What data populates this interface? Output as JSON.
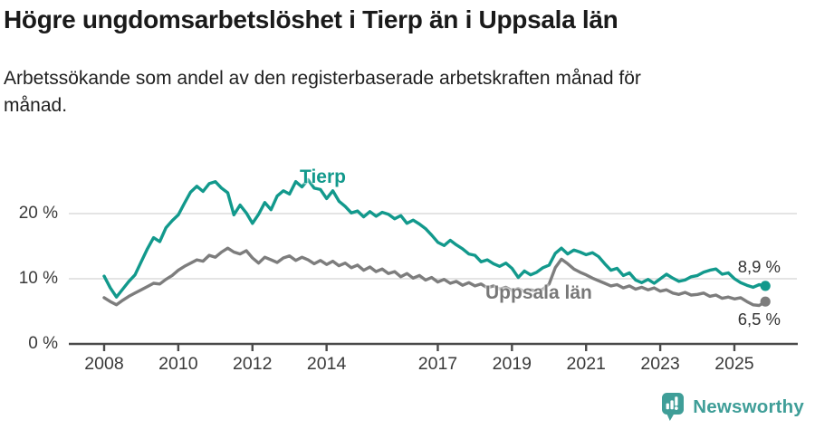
{
  "header": {
    "title": "Högre ungdomsarbetslöshet i Tierp än i Uppsala län",
    "subtitle": "Arbetssökande som andel av den registerbaserade arbetskraften månad för\nmånad."
  },
  "chart_data": {
    "type": "line",
    "title": "Högre ungdomsarbetslöshet i Tierp än i Uppsala län",
    "subtitle": "Arbetssökande som andel av den registerbaserade arbetskraften månad för månad.",
    "unit": "%",
    "grid": "horizontal",
    "legend_position": "inline-labels",
    "x_start_year": 2008.0,
    "x_step_years": 0.1667,
    "x_end_year": 2025.8,
    "ylim": [
      0,
      27
    ],
    "y_axis_ticks": [
      {
        "value": 20,
        "label": "20 %"
      },
      {
        "value": 10,
        "label": "10 %"
      },
      {
        "value": 0,
        "label": "0 %"
      }
    ],
    "x_axis_ticks": [
      {
        "year": 2008,
        "label": "2008"
      },
      {
        "year": 2010,
        "label": "2010"
      },
      {
        "year": 2012,
        "label": "2012"
      },
      {
        "year": 2014,
        "label": "2014"
      },
      {
        "year": 2017,
        "label": "2017"
      },
      {
        "year": 2019,
        "label": "2019"
      },
      {
        "year": 2021,
        "label": "2021"
      },
      {
        "year": 2023,
        "label": "2023"
      },
      {
        "year": 2025,
        "label": "2025"
      }
    ],
    "series": [
      {
        "name": "Tierp",
        "label": "Tierp",
        "color": "#12998c",
        "end_label": "8,9 %",
        "end_value": 8.9,
        "values": [
          10.4,
          8.6,
          7.2,
          8.4,
          9.6,
          10.6,
          12.6,
          14.6,
          16.3,
          15.7,
          17.8,
          18.9,
          19.8,
          21.6,
          23.3,
          24.2,
          23.4,
          24.6,
          24.9,
          23.9,
          23.2,
          19.8,
          21.3,
          20.1,
          18.5,
          19.9,
          21.7,
          20.6,
          22.7,
          23.5,
          23.0,
          24.9,
          24.1,
          25.2,
          23.9,
          23.7,
          22.3,
          23.5,
          21.9,
          21.1,
          20.1,
          20.4,
          19.5,
          20.3,
          19.6,
          20.2,
          19.9,
          19.2,
          19.7,
          18.5,
          19.0,
          18.4,
          17.7,
          16.7,
          15.6,
          15.1,
          15.9,
          15.2,
          14.6,
          13.8,
          13.6,
          12.6,
          12.9,
          12.3,
          11.9,
          12.4,
          11.6,
          10.2,
          11.2,
          10.6,
          11.0,
          11.7,
          12.1,
          13.9,
          14.7,
          13.8,
          14.4,
          14.1,
          13.7,
          14.0,
          13.4,
          12.3,
          11.3,
          11.6,
          10.5,
          10.9,
          9.8,
          9.4,
          9.9,
          9.3,
          10.0,
          10.7,
          10.1,
          9.6,
          9.8,
          10.3,
          10.5,
          11.0,
          11.3,
          11.5,
          10.7,
          10.9,
          10.0,
          9.4,
          9.0,
          8.7,
          9.1,
          8.9
        ]
      },
      {
        "name": "Uppsala län",
        "label": "Uppsala län",
        "color": "#7d7d7d",
        "end_label": "6,5 %",
        "end_value": 6.5,
        "values": [
          7.1,
          6.5,
          6.0,
          6.7,
          7.3,
          7.8,
          8.3,
          8.8,
          9.3,
          9.2,
          9.9,
          10.5,
          11.3,
          11.9,
          12.4,
          12.9,
          12.7,
          13.6,
          13.3,
          14.1,
          14.7,
          14.1,
          13.8,
          14.3,
          13.2,
          12.4,
          13.3,
          12.9,
          12.5,
          13.2,
          13.5,
          12.8,
          13.3,
          12.9,
          12.3,
          12.8,
          12.2,
          12.7,
          12.0,
          12.4,
          11.7,
          12.1,
          11.3,
          11.8,
          11.1,
          11.5,
          10.8,
          11.1,
          10.3,
          10.8,
          10.1,
          10.5,
          9.8,
          10.2,
          9.5,
          9.9,
          9.3,
          9.6,
          9.0,
          9.4,
          8.9,
          9.2,
          8.6,
          8.9,
          8.4,
          8.7,
          8.2,
          8.5,
          8.0,
          8.3,
          8.1,
          8.4,
          9.2,
          11.7,
          13.0,
          12.3,
          11.5,
          11.0,
          10.6,
          10.1,
          9.7,
          9.3,
          8.9,
          9.1,
          8.6,
          8.9,
          8.4,
          8.7,
          8.3,
          8.6,
          8.1,
          8.3,
          7.8,
          7.6,
          7.9,
          7.5,
          7.6,
          7.8,
          7.3,
          7.5,
          7.0,
          7.2,
          6.9,
          7.1,
          6.5,
          6.0,
          5.9,
          6.5
        ]
      }
    ]
  },
  "colors": {
    "accent_teal": "#12998c",
    "series_gray": "#7d7d7d",
    "axis": "#4a4a4a",
    "grid": "#dcdcdc",
    "text_dark": "#1a1a1a",
    "tick_text": "#3a3a3a",
    "brand_teal": "#3f9e98"
  },
  "footer": {
    "brand": "Newsworthy"
  }
}
